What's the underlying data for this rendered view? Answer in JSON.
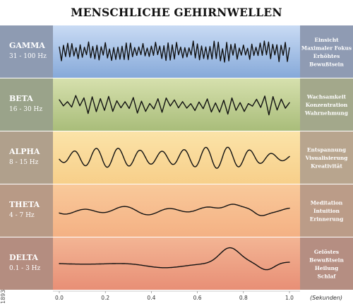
{
  "title": "MENSCHLICHE GEHIRNWELLEN",
  "stock_id": "189362261",
  "axis": {
    "unit_label": "(Sekunden)",
    "ticks": [
      0.0,
      0.2,
      0.4,
      0.6,
      0.8,
      1.0
    ],
    "tick_labels": [
      "0.0",
      "0.2",
      "0.4",
      "0.6",
      "0.8",
      "1.0"
    ]
  },
  "bands": [
    {
      "name": "GAMMA",
      "range": "31 - 100 Hz",
      "states": [
        "Einsicht",
        "Maximaler Fokus",
        "Erhöhtes",
        "Bewußtsein"
      ],
      "colors": {
        "label": "#8e9bb2",
        "wave_top": "#c9dbf4",
        "wave_bottom": "#86a9d9",
        "state": "#8f9bb3"
      }
    },
    {
      "name": "BETA",
      "range": "16 - 30 Hz",
      "states": [
        "Wachsamkeit",
        "Konzentration",
        "Wahrnehmung"
      ],
      "colors": {
        "label": "#9aa38a",
        "wave_top": "#d6e0ad",
        "wave_bottom": "#a9bd7a",
        "state": "#a3a88b"
      }
    },
    {
      "name": "ALPHA",
      "range": "8 - 15 Hz",
      "states": [
        "Entspannung",
        "Visualisierung",
        "Kreativität"
      ],
      "colors": {
        "label": "#b0a08c",
        "wave_top": "#fbe3a8",
        "wave_bottom": "#f7cf8a",
        "state": "#b8a58e"
      }
    },
    {
      "name": "THETA",
      "range": "4 - 7 Hz",
      "states": [
        "Meditation",
        "Intuition",
        "Erinnerung"
      ],
      "colors": {
        "label": "#b89a86",
        "wave_top": "#f9c99a",
        "wave_bottom": "#f4b184",
        "state": "#bb9c88"
      }
    },
    {
      "name": "DELTA",
      "range": "0.1 - 3 Hz",
      "states": [
        "Gelöstes",
        "Bewußtsein",
        "Heilung",
        "Schlaf"
      ],
      "colors": {
        "label": "#b48d80",
        "wave_top": "#f3b594",
        "wave_bottom": "#e88f76",
        "state": "#b58e82"
      }
    }
  ]
}
